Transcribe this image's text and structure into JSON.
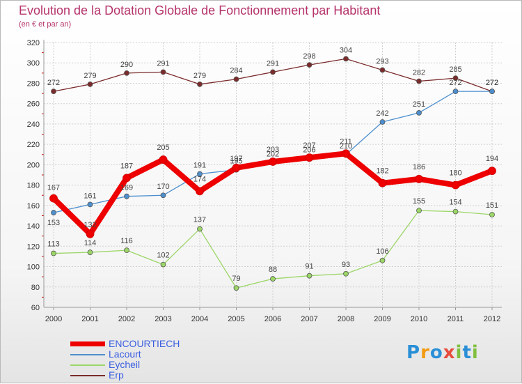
{
  "header": {
    "title": "Evolution de la Dotation Globale de Fonctionnement par Habitant",
    "subtitle": "(en € et par an)"
  },
  "logo": {
    "text": "Proxiti",
    "letters": [
      "P",
      "r",
      "o",
      "x",
      "i",
      "t",
      "i"
    ],
    "colors": [
      "#2a8fd6",
      "#f39c12",
      "#2a8fd6",
      "#e74c3c",
      "#7fbf3f",
      "#2a8fd6",
      "#7fbf3f"
    ]
  },
  "chart_data": {
    "type": "line",
    "title": "Evolution de la Dotation Globale de Fonctionnement par Habitant",
    "subtitle": "(en € et par an)",
    "xlabel": "",
    "ylabel": "",
    "categories": [
      "2000",
      "2001",
      "2002",
      "2003",
      "2004",
      "2005",
      "2006",
      "2007",
      "2008",
      "2009",
      "2010",
      "2011",
      "2012"
    ],
    "ylim": [
      60,
      320
    ],
    "yticks": [
      60,
      80,
      100,
      120,
      140,
      160,
      180,
      200,
      220,
      240,
      260,
      280,
      300,
      320
    ],
    "grid": true,
    "legend_position": "bottom-left",
    "series": [
      {
        "name": "Erp",
        "color": "#7b2b2b",
        "values": [
          272,
          279,
          290,
          291,
          279,
          284,
          291,
          298,
          304,
          293,
          282,
          285,
          272
        ],
        "labels": [
          "272",
          "279",
          "290",
          "291",
          "279",
          "284",
          "291",
          "298",
          "304",
          "293",
          "282",
          "285",
          "272"
        ]
      },
      {
        "name": "Eycheil",
        "color": "#9cd667",
        "values": [
          113,
          114,
          116,
          102,
          137,
          79,
          88,
          91,
          93,
          106,
          155,
          154,
          151
        ],
        "labels": [
          "113",
          "114",
          "116",
          "102",
          "137",
          "79",
          "88",
          "91",
          "93",
          "106",
          "155",
          "154",
          "151"
        ]
      },
      {
        "name": "Lacourt",
        "color": "#4d8fce",
        "values": [
          153,
          161,
          169,
          170,
          191,
          195,
          202,
          206,
          210,
          242,
          251,
          272,
          272
        ],
        "labels": [
          "153",
          "161",
          "169",
          "170",
          "191",
          "195",
          "202",
          "206",
          "210",
          "242",
          "251",
          "272",
          "272"
        ]
      },
      {
        "name": "ENCOURTIECH",
        "color": "#ee0000",
        "values": [
          167,
          132,
          187,
          205,
          174,
          197,
          203,
          207,
          211,
          182,
          186,
          180,
          194
        ],
        "labels": [
          "167",
          "132",
          "187",
          "205",
          "174",
          "197",
          "203",
          "207",
          "211",
          "182",
          "186",
          "180",
          "194"
        ]
      }
    ],
    "legend": [
      {
        "name": "ENCOURTIECH",
        "color": "#ee0000"
      },
      {
        "name": "Lacourt",
        "color": "#4d8fce"
      },
      {
        "name": "Eycheil",
        "color": "#9cd667"
      },
      {
        "name": "Erp",
        "color": "#7b2b2b"
      }
    ]
  }
}
